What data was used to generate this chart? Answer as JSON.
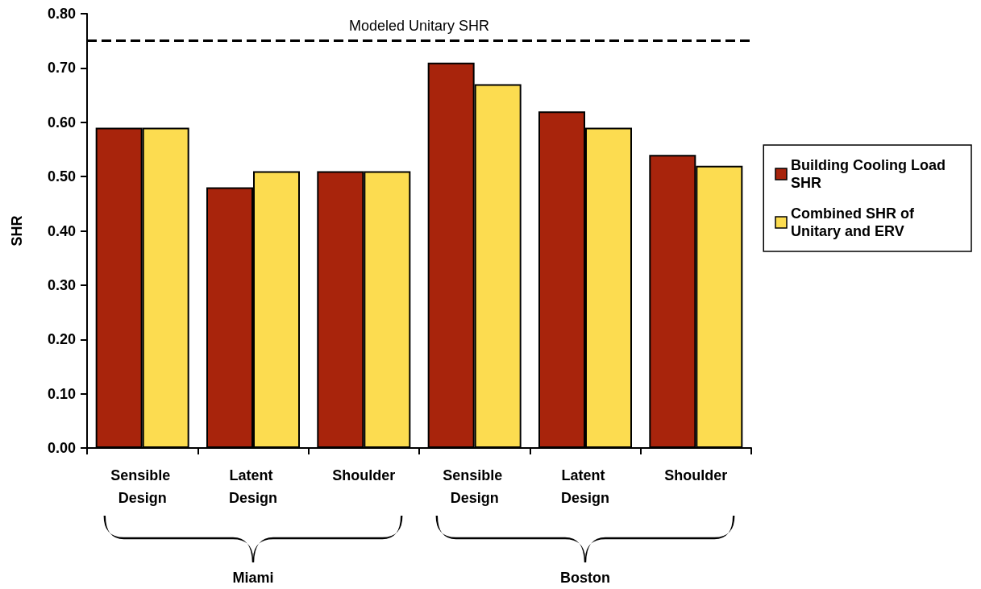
{
  "chart_data": {
    "type": "bar",
    "ylabel": "SHR",
    "categories": [
      "Sensible Design",
      "Latent Design",
      "Shoulder",
      "Sensible Design",
      "Latent Design",
      "Shoulder"
    ],
    "series": [
      {
        "name": "Building Cooling Load SHR",
        "color": "#a8240c",
        "values": [
          0.59,
          0.48,
          0.51,
          0.71,
          0.62,
          0.54
        ]
      },
      {
        "name": "Combined SHR of Unitary and ERV",
        "color": "#fcdc50",
        "values": [
          0.59,
          0.51,
          0.51,
          0.67,
          0.59,
          0.52
        ]
      }
    ],
    "ylim": [
      0,
      0.8
    ],
    "yticks": [
      {
        "value": 0,
        "label": "0.00"
      },
      {
        "value": 0.1,
        "label": "0.10"
      },
      {
        "value": 0.2,
        "label": "0.20"
      },
      {
        "value": 0.3,
        "label": "0.30"
      },
      {
        "value": 0.4,
        "label": "0.40"
      },
      {
        "value": 0.5,
        "label": "0.50"
      },
      {
        "value": 0.6,
        "label": "0.60"
      },
      {
        "value": 0.7,
        "label": "0.70"
      },
      {
        "value": 0.8,
        "label": "0.80"
      }
    ],
    "ref_lines": [
      {
        "axis": "y",
        "value": 0.75,
        "label": "Modeled Unitary SHR",
        "color": "#000000",
        "line_style": "dashed"
      }
    ],
    "annotations": [
      "Miami",
      "Boston"
    ],
    "grid": false,
    "legend": "right"
  }
}
